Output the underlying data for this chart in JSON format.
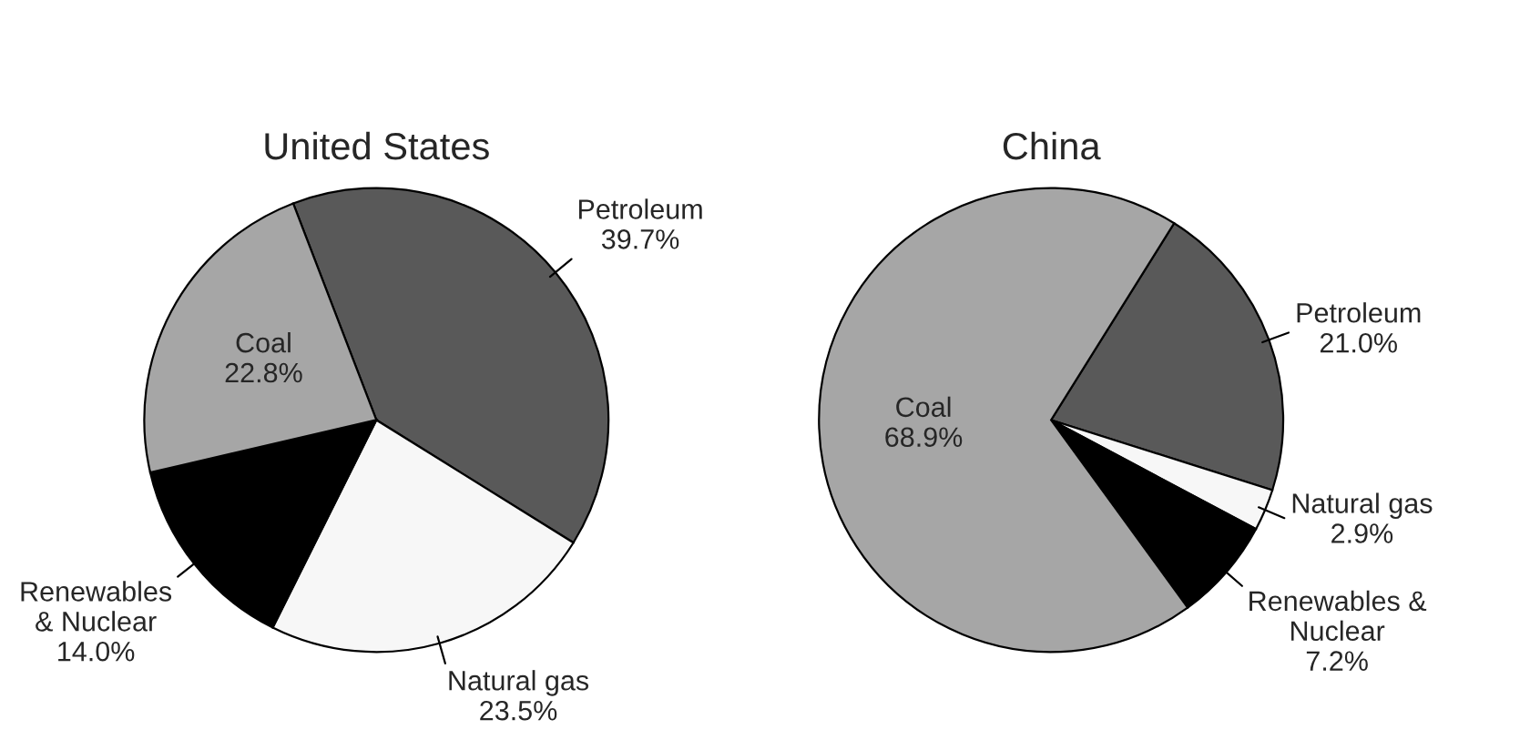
{
  "chart_data": [
    {
      "type": "pie",
      "title": "United States",
      "categories": [
        "Petroleum",
        "Natural gas",
        "Renewables\n& Nuclear",
        "Coal"
      ],
      "values": [
        39.7,
        23.5,
        14.0,
        22.8
      ],
      "value_labels": [
        "39.7%",
        "23.5%",
        "14.0%",
        "22.8%"
      ],
      "colors": [
        "#595959",
        "#f7f7f7",
        "#000000",
        "#a6a6a6"
      ]
    },
    {
      "type": "pie",
      "title": "China",
      "categories": [
        "Petroleum",
        "Natural gas",
        "Renewables &\nNuclear",
        "Coal"
      ],
      "values": [
        21.0,
        2.9,
        7.2,
        68.9
      ],
      "value_labels": [
        "21.0%",
        "2.9%",
        "7.2%",
        "68.9%"
      ],
      "colors": [
        "#595959",
        "#f7f7f7",
        "#000000",
        "#a6a6a6"
      ]
    }
  ]
}
